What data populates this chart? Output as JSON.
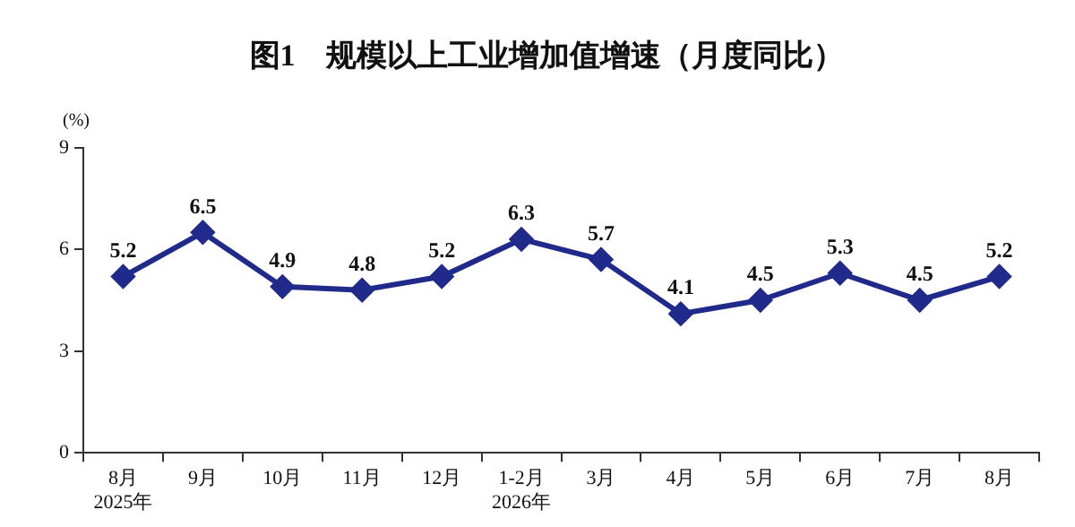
{
  "chart_data": {
    "type": "line",
    "title": "图1　规模以上工业增加值增速（月度同比）",
    "ylabel": "(%)",
    "categories": [
      "8月\n2025年",
      "9月",
      "10月",
      "11月",
      "12月",
      "1-2月\n2026年",
      "3月",
      "4月",
      "5月",
      "6月",
      "7月",
      "8月"
    ],
    "series": [
      {
        "color": "#1f2a8a",
        "values": [
          5.2,
          6.5,
          4.9,
          4.8,
          5.2,
          6.3,
          5.7,
          4.1,
          4.5,
          5.3,
          4.5,
          5.2
        ]
      }
    ],
    "ylim": [
      0,
      9
    ],
    "yticks": [
      0,
      3,
      6,
      9
    ],
    "grid": false,
    "legend": false,
    "marker": "diamond",
    "line_style": "solid",
    "data_labels": true
  }
}
